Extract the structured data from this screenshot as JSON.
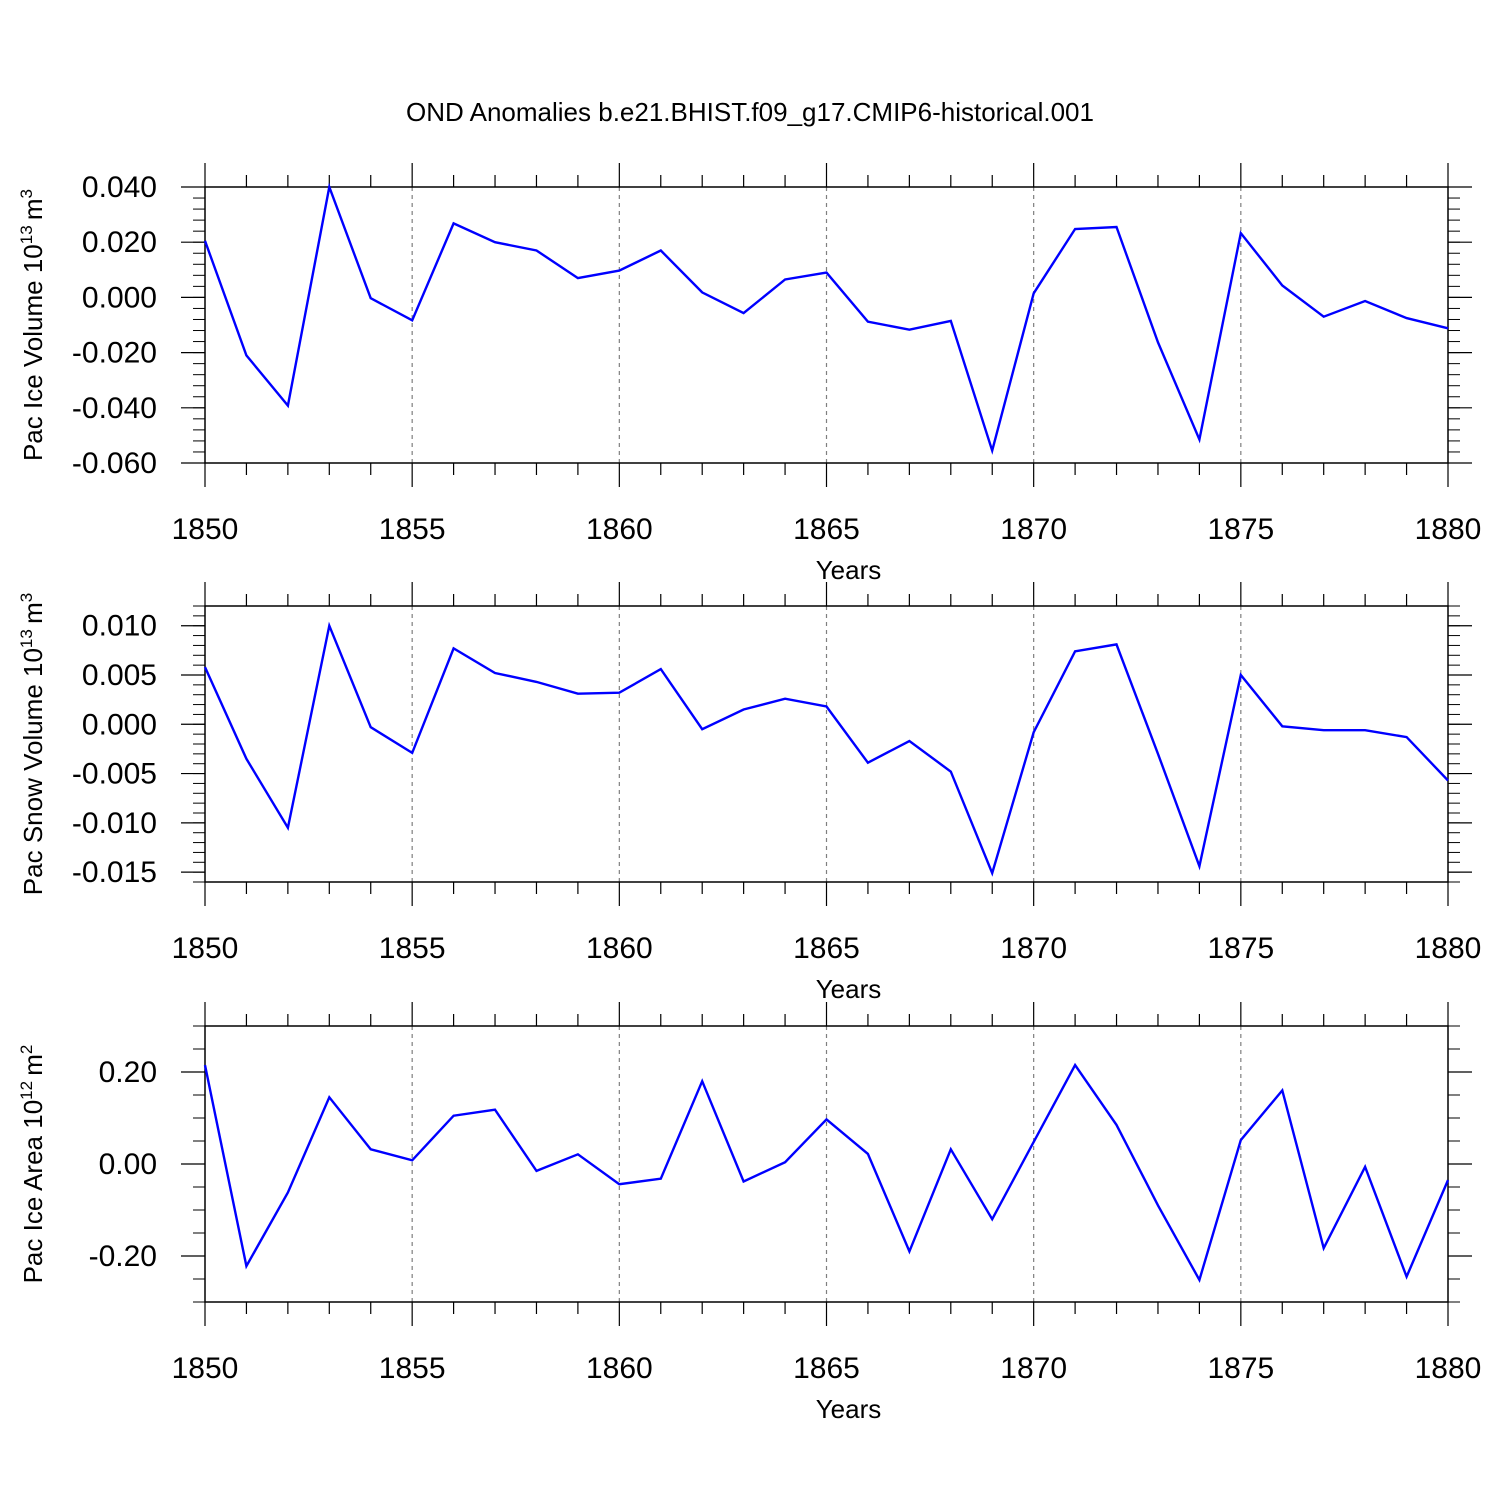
{
  "figure": {
    "title": "OND Anomalies b.e21.BHIST.f09_g17.CMIP6-historical.001"
  },
  "colors": {
    "line": "#0000ff",
    "axis": "#000000",
    "grid": "#7f7f7f"
  },
  "chart_data": [
    {
      "type": "line",
      "title": "",
      "xlabel": "Years",
      "ylabel_text": "Pac Ice Volume 10",
      "ylabel_exp": "13",
      "ylabel_unit": "m",
      "ylabel_unit_exp": "3",
      "xlim": [
        1850,
        1880
      ],
      "ylim": [
        -0.06,
        0.04
      ],
      "xticks": [
        "1850",
        "1855",
        "1860",
        "1865",
        "1870",
        "1875",
        "1880"
      ],
      "yticks": [
        {
          "value": 0.04,
          "label": "0.040"
        },
        {
          "value": 0.02,
          "label": "0.020"
        },
        {
          "value": 0.0,
          "label": "0.000"
        },
        {
          "value": -0.02,
          "label": "-0.020"
        },
        {
          "value": -0.04,
          "label": "-0.040"
        },
        {
          "value": -0.06,
          "label": "-0.060"
        }
      ],
      "yminor_step": 0.004,
      "x": [
        1850,
        1851,
        1852,
        1853,
        1854,
        1855,
        1856,
        1857,
        1858,
        1859,
        1860,
        1861,
        1862,
        1863,
        1864,
        1865,
        1866,
        1867,
        1868,
        1869,
        1870,
        1871,
        1872,
        1873,
        1874,
        1875,
        1876,
        1877,
        1878,
        1879,
        1880
      ],
      "values": [
        0.0205,
        -0.021,
        -0.0392,
        0.04,
        -0.0003,
        -0.0083,
        0.0268,
        0.02,
        0.017,
        0.007,
        0.0097,
        0.017,
        0.0018,
        -0.0057,
        0.0065,
        0.009,
        -0.0088,
        -0.0117,
        -0.0085,
        -0.0555,
        0.0015,
        0.0248,
        0.0255,
        -0.0163,
        -0.0515,
        0.0233,
        0.0043,
        -0.007,
        -0.0013,
        -0.0075,
        -0.0112
      ]
    },
    {
      "type": "line",
      "title": "",
      "xlabel": "Years",
      "ylabel_text": "Pac Snow Volume 10",
      "ylabel_exp": "13",
      "ylabel_unit": "m",
      "ylabel_unit_exp": "3",
      "xlim": [
        1850,
        1880
      ],
      "ylim": [
        -0.016,
        0.012
      ],
      "xticks": [
        "1850",
        "1855",
        "1860",
        "1865",
        "1870",
        "1875",
        "1880"
      ],
      "yticks": [
        {
          "value": 0.01,
          "label": "0.010"
        },
        {
          "value": 0.005,
          "label": "0.005"
        },
        {
          "value": 0.0,
          "label": "0.000"
        },
        {
          "value": -0.005,
          "label": "-0.005"
        },
        {
          "value": -0.01,
          "label": "-0.010"
        },
        {
          "value": -0.015,
          "label": "-0.015"
        }
      ],
      "yminor_step": 0.001,
      "x": [
        1850,
        1851,
        1852,
        1853,
        1854,
        1855,
        1856,
        1857,
        1858,
        1859,
        1860,
        1861,
        1862,
        1863,
        1864,
        1865,
        1866,
        1867,
        1868,
        1869,
        1870,
        1871,
        1872,
        1873,
        1874,
        1875,
        1876,
        1877,
        1878,
        1879,
        1880
      ],
      "values": [
        0.0058,
        -0.0035,
        -0.0105,
        0.01,
        -0.0003,
        -0.0029,
        0.0077,
        0.0052,
        0.0043,
        0.0031,
        0.0032,
        0.0056,
        -0.0005,
        0.0015,
        0.0026,
        0.0018,
        -0.0039,
        -0.0017,
        -0.0048,
        -0.0151,
        -0.0008,
        0.0074,
        0.0081,
        -0.003,
        -0.0144,
        0.005,
        -0.0002,
        -0.0006,
        -0.0006,
        -0.0013,
        -0.0057
      ]
    },
    {
      "type": "line",
      "title": "",
      "xlabel": "Years",
      "ylabel_text": "Pac Ice Area 10",
      "ylabel_exp": "12",
      "ylabel_unit": "m",
      "ylabel_unit_exp": "2",
      "xlim": [
        1850,
        1880
      ],
      "ylim": [
        -0.3,
        0.3
      ],
      "xticks": [
        "1850",
        "1855",
        "1860",
        "1865",
        "1870",
        "1875",
        "1880"
      ],
      "yticks": [
        {
          "value": 0.2,
          "label": "0.20"
        },
        {
          "value": 0.0,
          "label": "0.00"
        },
        {
          "value": -0.2,
          "label": "-0.20"
        }
      ],
      "yminor_step": 0.05,
      "x": [
        1850,
        1851,
        1852,
        1853,
        1854,
        1855,
        1856,
        1857,
        1858,
        1859,
        1860,
        1861,
        1862,
        1863,
        1864,
        1865,
        1866,
        1867,
        1868,
        1869,
        1870,
        1871,
        1872,
        1873,
        1874,
        1875,
        1876,
        1877,
        1878,
        1879,
        1880
      ],
      "values": [
        0.215,
        -0.222,
        -0.062,
        0.145,
        0.032,
        0.008,
        0.105,
        0.118,
        -0.015,
        0.021,
        -0.044,
        -0.032,
        0.18,
        -0.038,
        0.004,
        0.097,
        0.022,
        -0.19,
        0.032,
        -0.12,
        0.048,
        0.215,
        0.085,
        -0.09,
        -0.252,
        0.052,
        0.16,
        -0.183,
        -0.006,
        -0.245,
        -0.035
      ]
    }
  ]
}
